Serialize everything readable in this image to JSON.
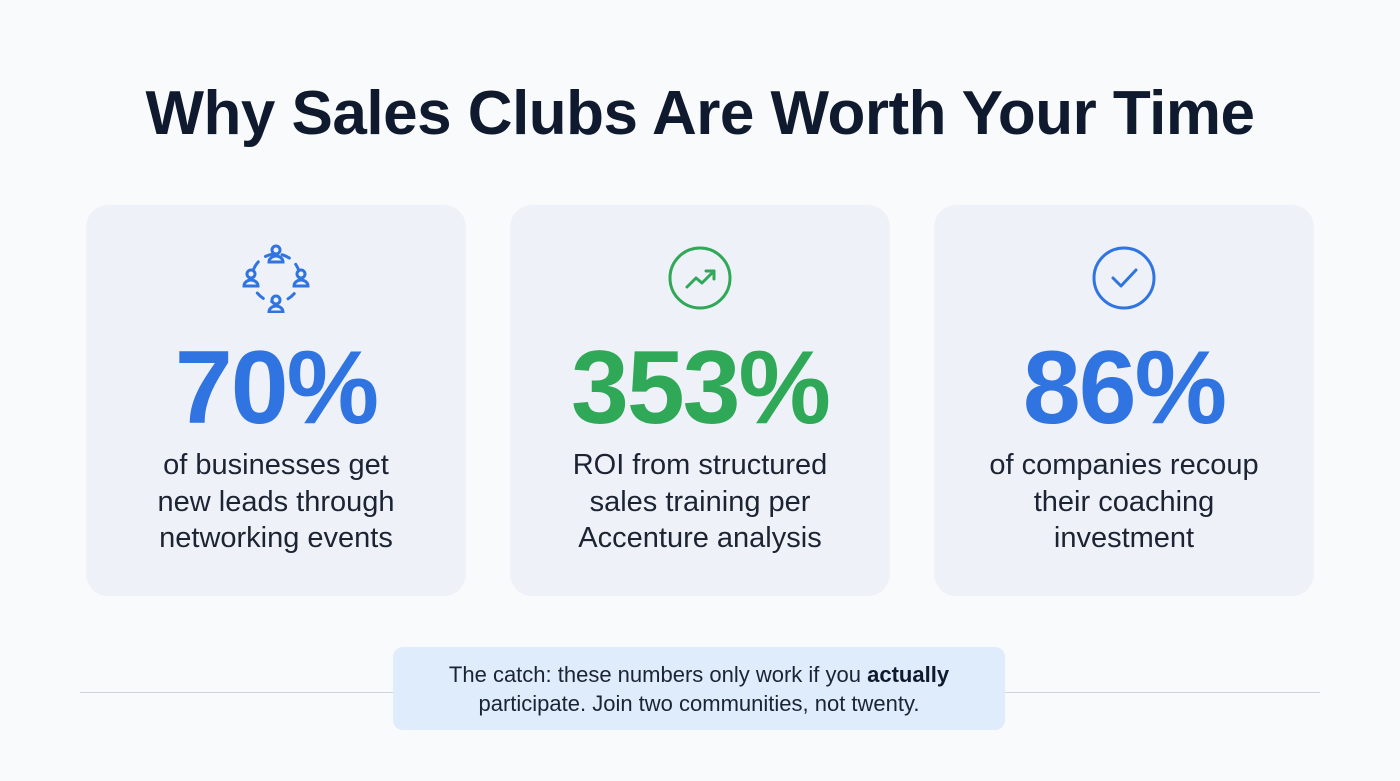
{
  "title": "Why Sales Clubs Are Worth Your Time",
  "colors": {
    "blue": "#2f74e0",
    "green": "#2fa857",
    "text": "#0f1a2e"
  },
  "cards": [
    {
      "icon": "network-people-icon",
      "value": "70%",
      "lines": [
        "of businesses get",
        "new leads through",
        "networking events"
      ]
    },
    {
      "icon": "trending-up-icon",
      "value": "353%",
      "lines": [
        "ROI from structured",
        "sales training per",
        "Accenture analysis"
      ]
    },
    {
      "icon": "check-circle-icon",
      "value": "86%",
      "lines": [
        "of companies recoup",
        "their coaching",
        "investment"
      ]
    }
  ],
  "callout": {
    "before": "The catch: these numbers only work if you ",
    "bold": "actually",
    "after": "participate. Join two communities, not twenty."
  }
}
